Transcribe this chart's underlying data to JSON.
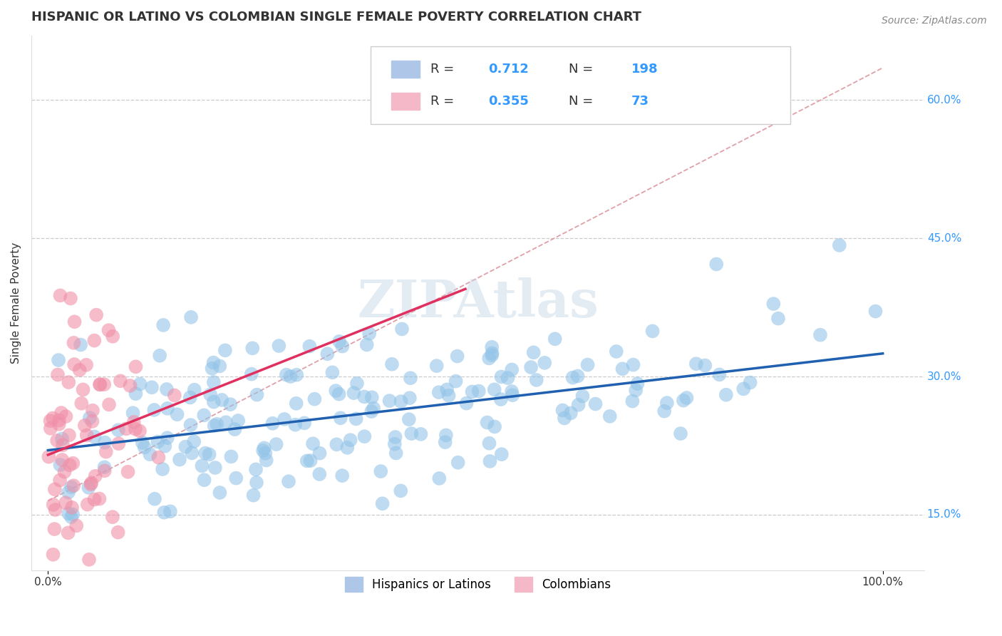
{
  "title": "HISPANIC OR LATINO VS COLOMBIAN SINGLE FEMALE POVERTY CORRELATION CHART",
  "source": "Source: ZipAtlas.com",
  "ylabel": "Single Female Poverty",
  "y_tick_values": [
    0.15,
    0.3,
    0.45,
    0.6
  ],
  "xlim": [
    -0.02,
    1.05
  ],
  "ylim": [
    0.09,
    0.67
  ],
  "bottom_legend": [
    "Hispanics or Latinos",
    "Colombians"
  ],
  "blue_color": "#93c4e8",
  "pink_color": "#f090a8",
  "blue_line_color": "#2060b0",
  "pink_line_color": "#e03060",
  "ref_line_color": "#e0a0a8",
  "blue_line_start_x": 0.0,
  "blue_line_start_y": 0.22,
  "blue_line_end_x": 1.0,
  "blue_line_end_y": 0.325,
  "pink_line_start_x": 0.0,
  "pink_line_start_y": 0.215,
  "pink_line_end_x": 0.5,
  "pink_line_end_y": 0.395,
  "ref_line_start_x": 0.0,
  "ref_line_start_y": 0.165,
  "ref_line_end_x": 1.0,
  "ref_line_end_y": 0.635,
  "watermark": "ZIPAtlas",
  "seed": 42,
  "n_blue": 198,
  "n_pink": 73,
  "title_fontsize": 13,
  "axis_label_fontsize": 11,
  "tick_fontsize": 11,
  "legend_fontsize": 13,
  "source_fontsize": 10,
  "r_blue": "0.712",
  "n_blue_label": "198",
  "r_pink": "0.355",
  "n_pink_label": "73"
}
